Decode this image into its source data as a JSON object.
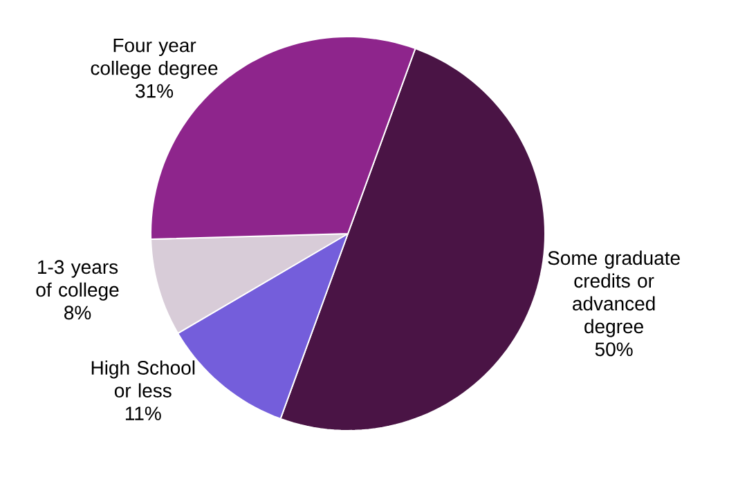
{
  "chart_data": {
    "type": "pie",
    "categories": [
      "Some graduate credits or advanced degree",
      "High School or less",
      "1-3 years of college",
      "Four year college degree"
    ],
    "values": [
      50,
      11,
      8,
      31
    ],
    "colors": [
      "#4a1445",
      "#745edb",
      "#d8ccd8",
      "#8e258c"
    ],
    "value_labels": [
      "50%",
      "11%",
      "8%",
      "31%"
    ]
  }
}
